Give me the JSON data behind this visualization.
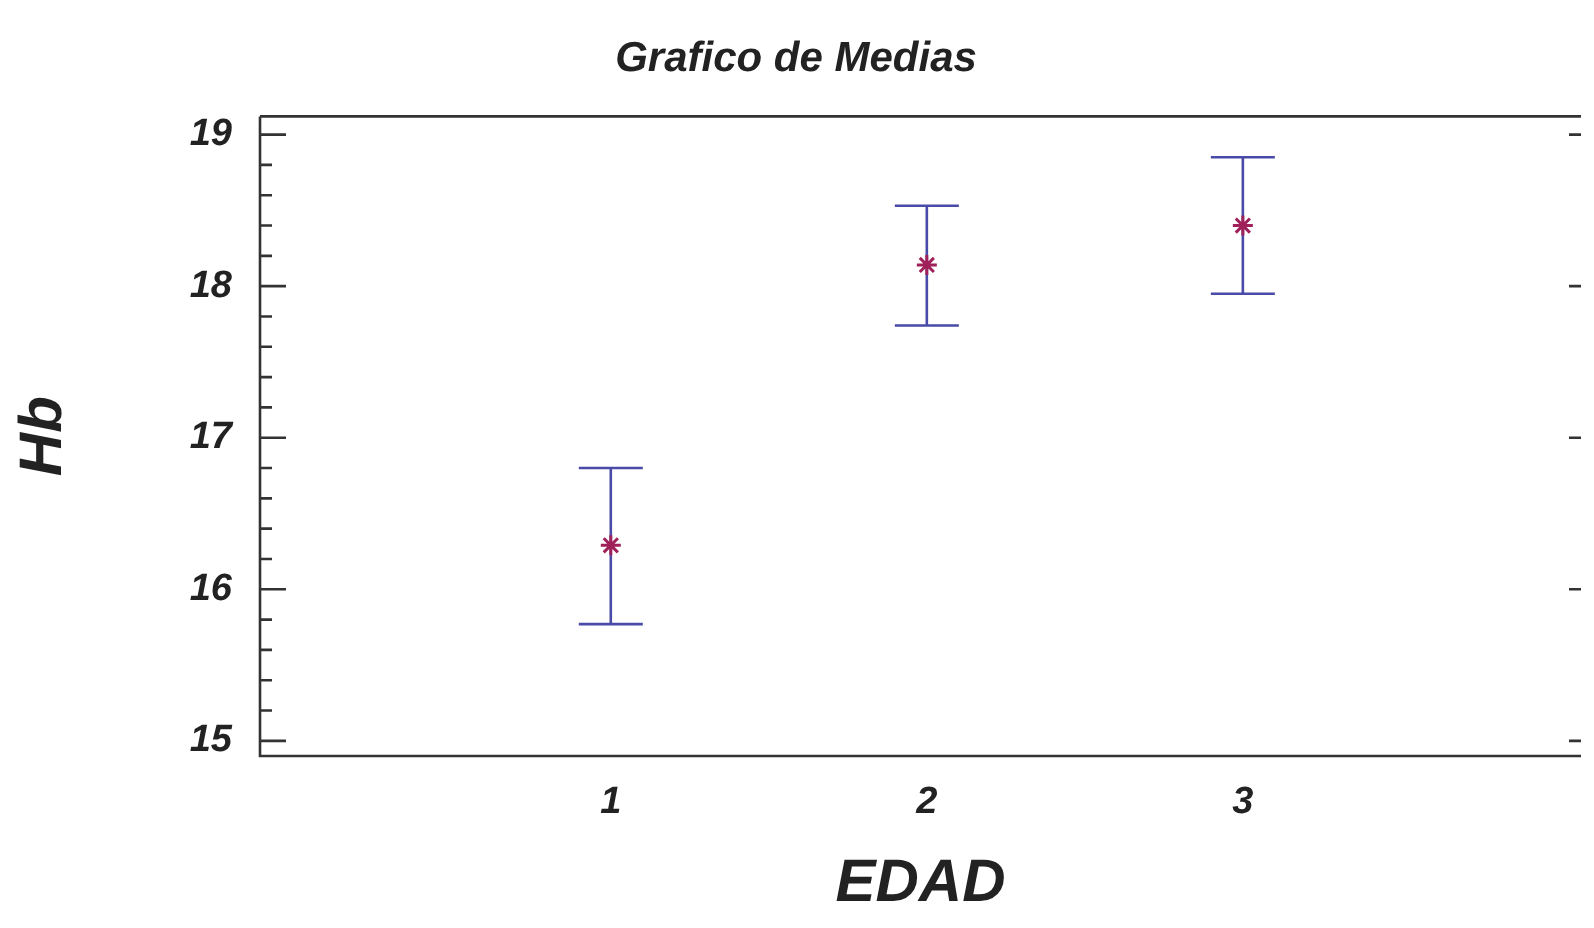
{
  "chart_data": {
    "type": "scatter",
    "title": "Grafico de Medias",
    "xlabel": "EDAD",
    "ylabel": "Hb",
    "x": [
      1,
      2,
      3
    ],
    "series": [
      {
        "color": "#a0205a",
        "values": [
          16.29,
          18.14,
          18.4
        ],
        "errors": [
          [
            15.77,
            16.8
          ],
          [
            17.74,
            18.53
          ],
          [
            17.95,
            18.85
          ]
        ]
      }
    ],
    "xlim": [
      -0.11,
      4.07
    ],
    "xticks": [
      1,
      2,
      3
    ],
    "ylim": [
      14.9,
      19.12
    ],
    "yticks": [
      15,
      {
        "value": 15.2,
        "label": null
      },
      {
        "value": 15.4,
        "label": null
      },
      {
        "value": 15.6,
        "label": null
      },
      {
        "value": 15.8,
        "label": null
      },
      16,
      {
        "value": 16.2,
        "label": null
      },
      {
        "value": 16.4,
        "label": null
      },
      {
        "value": 16.6,
        "label": null
      },
      {
        "value": 16.8,
        "label": null
      },
      17,
      {
        "value": 17.2,
        "label": null
      },
      {
        "value": 17.4,
        "label": null
      },
      {
        "value": 17.6,
        "label": null
      },
      {
        "value": 17.8,
        "label": null
      },
      18,
      {
        "value": 18.2,
        "label": null
      },
      {
        "value": 18.4,
        "label": null
      },
      {
        "value": 18.6,
        "label": null
      },
      {
        "value": 18.8,
        "label": null
      },
      19
    ],
    "marker": "cross",
    "grid": false,
    "legend": false
  }
}
